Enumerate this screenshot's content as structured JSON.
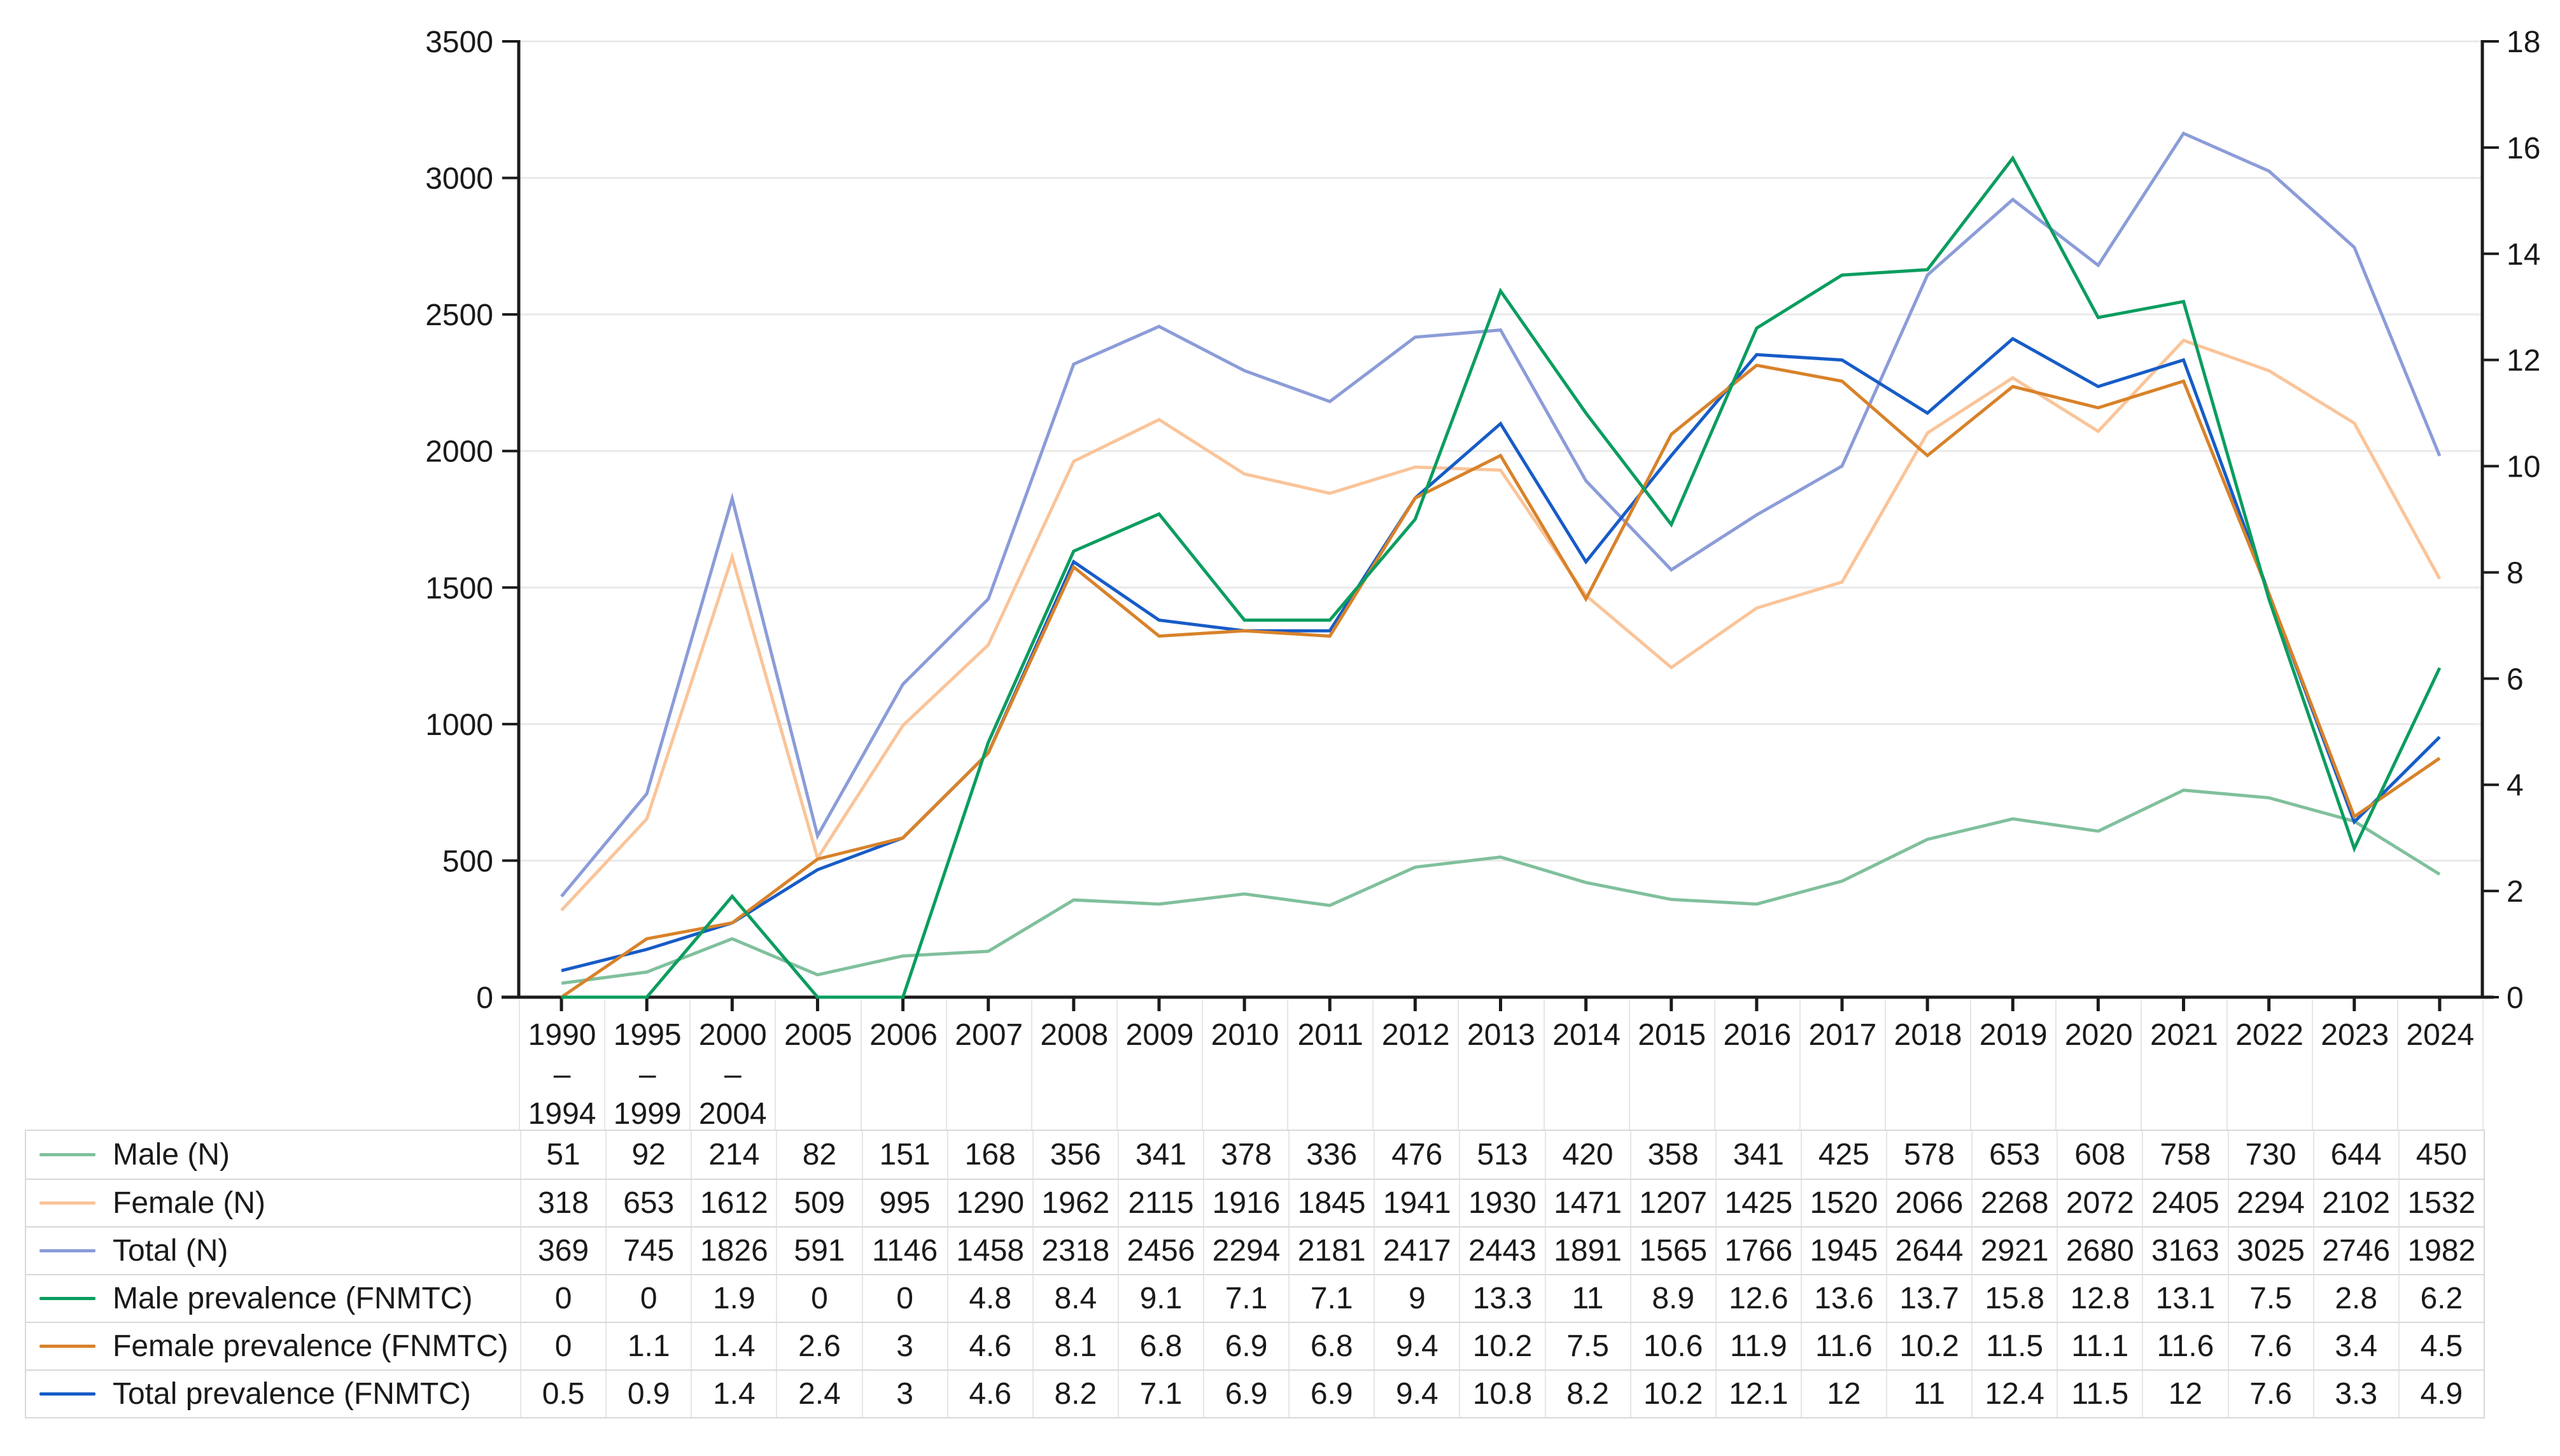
{
  "page": {
    "background": "#ffffff",
    "text_color": "#1a1a1a"
  },
  "chart_data": {
    "type": "line",
    "title": "",
    "xlabel": "",
    "ylabel_left": "",
    "ylabel_right": "",
    "grid": "horizontal gridlines on",
    "legend_position": "left column of data table below chart",
    "categories": [
      "1990–1994",
      "1995–1999",
      "2000–2004",
      "2005",
      "2006",
      "2007",
      "2008",
      "2009",
      "2010",
      "2011",
      "2012",
      "2013",
      "2014",
      "2015",
      "2016",
      "2017",
      "2018",
      "2019",
      "2020",
      "2021",
      "2022",
      "2023",
      "2024"
    ],
    "left_axis": {
      "min": 0,
      "max": 3500,
      "step": 500,
      "tick_labels": [
        "0",
        "500",
        "1000",
        "1500",
        "2000",
        "2500",
        "3000",
        "3500"
      ]
    },
    "right_axis": {
      "min": 0,
      "max": 18,
      "step": 2,
      "tick_labels": [
        "0",
        "2",
        "4",
        "6",
        "8",
        "10",
        "12",
        "14",
        "16",
        "18"
      ]
    },
    "series": [
      {
        "name": "Male (N)",
        "axis": "left",
        "color": "#80c09c",
        "values": [
          51,
          92,
          214,
          82,
          151,
          168,
          356,
          341,
          378,
          336,
          476,
          513,
          420,
          358,
          341,
          425,
          578,
          653,
          608,
          758,
          730,
          644,
          450
        ]
      },
      {
        "name": "Female (N)",
        "axis": "left",
        "color": "#fac499",
        "values": [
          318,
          653,
          1612,
          509,
          995,
          1290,
          1962,
          2115,
          1916,
          1845,
          1941,
          1930,
          1471,
          1207,
          1425,
          1520,
          2066,
          2268,
          2072,
          2405,
          2294,
          2102,
          1532
        ]
      },
      {
        "name": "Total (N)",
        "axis": "left",
        "color": "#8b9cd8",
        "values": [
          369,
          745,
          1826,
          591,
          1146,
          1458,
          2318,
          2456,
          2294,
          2181,
          2417,
          2443,
          1891,
          1565,
          1766,
          1945,
          2644,
          2921,
          2680,
          3163,
          3025,
          2746,
          1982
        ]
      },
      {
        "name": "Male prevalence (FNMTC)",
        "axis": "right",
        "color": "#0b9d5f",
        "values": [
          0,
          0,
          1.9,
          0,
          0,
          4.8,
          8.4,
          9.1,
          7.1,
          7.1,
          9,
          13.3,
          11,
          8.9,
          12.6,
          13.6,
          13.7,
          15.8,
          12.8,
          13.1,
          7.5,
          2.8,
          6.2
        ]
      },
      {
        "name": "Female prevalence (FNMTC)",
        "axis": "right",
        "color": "#d8822a",
        "values": [
          0,
          1.1,
          1.4,
          2.6,
          3,
          4.6,
          8.1,
          6.8,
          6.9,
          6.8,
          9.4,
          10.2,
          7.5,
          10.6,
          11.9,
          11.6,
          10.2,
          11.5,
          11.1,
          11.6,
          7.6,
          3.4,
          4.5
        ]
      },
      {
        "name": "Total prevalence (FNMTC)",
        "axis": "right",
        "color": "#175cc7",
        "values": [
          0.5,
          0.9,
          1.4,
          2.4,
          3,
          4.6,
          8.2,
          7.1,
          6.9,
          6.9,
          9.4,
          10.8,
          8.2,
          10.2,
          12.1,
          12,
          11,
          12.4,
          11.5,
          12,
          7.6,
          3.3,
          4.9
        ]
      }
    ],
    "draw_order": [
      0,
      1,
      2,
      5,
      4,
      3
    ],
    "styles": {
      "gridline_color": "#e9e9e9",
      "axis_color": "#1b1b1b",
      "table_row_border": "#d8d8d8",
      "table_col_border": "#e6e6e6",
      "series_stroke_width": 5
    }
  }
}
